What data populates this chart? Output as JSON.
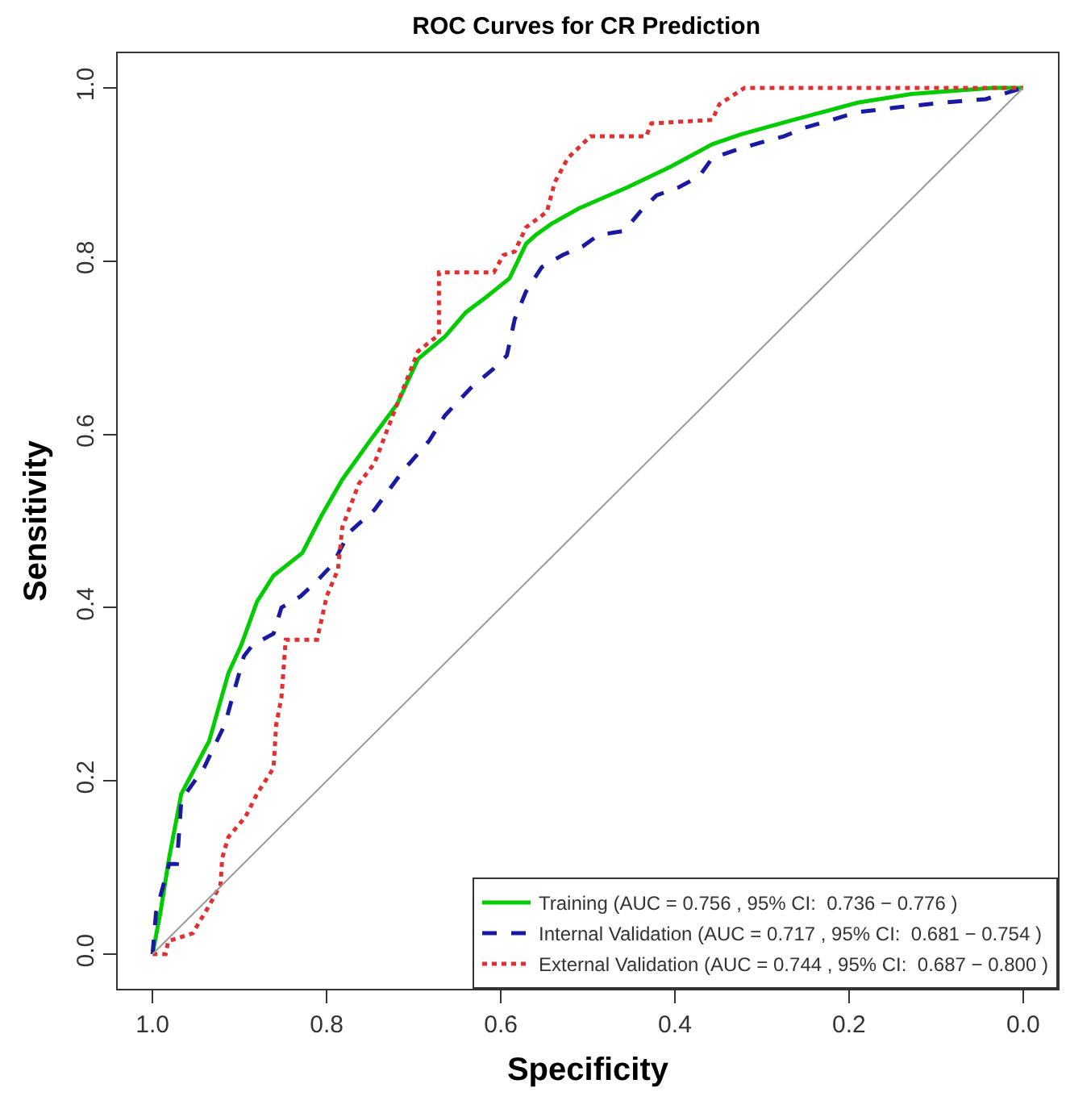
{
  "chart_data": {
    "type": "line",
    "title": "ROC Curves for CR Prediction",
    "xlabel": "Specificity",
    "ylabel": "Sensitivity",
    "xlim": [
      1.04,
      -0.04
    ],
    "ylim": [
      -0.04,
      1.04
    ],
    "xticks": [
      {
        "value": 1,
        "label": "1.0"
      },
      {
        "value": 0.8,
        "label": "0.8"
      },
      {
        "value": 0.6,
        "label": "0.6"
      },
      {
        "value": 0.4,
        "label": "0.4"
      },
      {
        "value": 0.2,
        "label": "0.2"
      },
      {
        "value": 0,
        "label": "0.0"
      }
    ],
    "yticks": [
      {
        "value": 0,
        "label": "0.0"
      },
      {
        "value": 0.2,
        "label": "0.2"
      },
      {
        "value": 0.4,
        "label": "0.4"
      },
      {
        "value": 0.6,
        "label": "0.6"
      },
      {
        "value": 0.8,
        "label": "0.8"
      },
      {
        "value": 1,
        "label": "1.0"
      }
    ],
    "grid": false,
    "legend": "bottom right",
    "marker": "none",
    "series": [
      {
        "name": "Training (AUC = 0.756 , 95% CI:  0.736 − 0.776 )",
        "color": "#00cc00",
        "line_style": "solid",
        "x": [
          1,
          0.991,
          0.981,
          0.967,
          0.935,
          0.913,
          0.898,
          0.88,
          0.861,
          0.828,
          0.806,
          0.782,
          0.75,
          0.719,
          0.695,
          0.664,
          0.64,
          0.616,
          0.59,
          0.571,
          0.56,
          0.542,
          0.51,
          0.455,
          0.405,
          0.357,
          0.325,
          0.264,
          0.19,
          0.128,
          0.035,
          0
        ],
        "values": [
          0,
          0.048,
          0.111,
          0.185,
          0.246,
          0.324,
          0.357,
          0.407,
          0.437,
          0.463,
          0.506,
          0.548,
          0.593,
          0.635,
          0.687,
          0.713,
          0.741,
          0.759,
          0.78,
          0.82,
          0.83,
          0.843,
          0.861,
          0.885,
          0.909,
          0.935,
          0.946,
          0.963,
          0.983,
          0.993,
          1,
          1
        ]
      },
      {
        "name": "Internal Validation (AUC = 0.717 , 95% CI:  0.681 − 0.754 )",
        "color": "#1a1aa0",
        "line_style": "dashed",
        "x": [
          1,
          0.996,
          0.991,
          0.981,
          0.972,
          0.967,
          0.941,
          0.917,
          0.895,
          0.885,
          0.861,
          0.852,
          0.83,
          0.811,
          0.793,
          0.774,
          0.745,
          0.713,
          0.682,
          0.664,
          0.634,
          0.608,
          0.593,
          0.584,
          0.571,
          0.553,
          0.529,
          0.506,
          0.488,
          0.458,
          0.44,
          0.421,
          0.396,
          0.372,
          0.357,
          0.331,
          0.301,
          0.275,
          0.251,
          0.22,
          0.19,
          0.14,
          0.091,
          0.043,
          0
        ],
        "values": [
          0,
          0.048,
          0.067,
          0.104,
          0.104,
          0.178,
          0.215,
          0.265,
          0.344,
          0.357,
          0.37,
          0.4,
          0.413,
          0.431,
          0.45,
          0.487,
          0.513,
          0.557,
          0.593,
          0.622,
          0.654,
          0.676,
          0.691,
          0.733,
          0.765,
          0.793,
          0.807,
          0.817,
          0.83,
          0.835,
          0.857,
          0.876,
          0.885,
          0.898,
          0.919,
          0.928,
          0.937,
          0.944,
          0.954,
          0.963,
          0.972,
          0.978,
          0.983,
          0.987,
          1
        ]
      },
      {
        "name": "External Validation (AUC = 0.744 , 95% CI:  0.687 − 0.800 )",
        "color": "#e03030",
        "line_style": "dotted",
        "x": [
          1,
          0.985,
          0.982,
          0.954,
          0.935,
          0.922,
          0.92,
          0.913,
          0.893,
          0.88,
          0.861,
          0.858,
          0.852,
          0.847,
          0.811,
          0.8,
          0.787,
          0.782,
          0.763,
          0.745,
          0.719,
          0.695,
          0.671,
          0.671,
          0.608,
          0.597,
          0.584,
          0.571,
          0.547,
          0.538,
          0.523,
          0.497,
          0.433,
          0.427,
          0.357,
          0.349,
          0.32,
          0
        ],
        "values": [
          0,
          0,
          0.015,
          0.024,
          0.056,
          0.08,
          0.111,
          0.135,
          0.159,
          0.185,
          0.215,
          0.265,
          0.296,
          0.363,
          0.363,
          0.413,
          0.444,
          0.493,
          0.543,
          0.567,
          0.635,
          0.696,
          0.715,
          0.787,
          0.787,
          0.807,
          0.811,
          0.839,
          0.857,
          0.891,
          0.919,
          0.944,
          0.944,
          0.959,
          0.963,
          0.981,
          1,
          1
        ]
      },
      {
        "color": "#999999",
        "line_style": "solid",
        "x": [
          1,
          0
        ],
        "values": [
          0,
          1
        ]
      }
    ]
  }
}
